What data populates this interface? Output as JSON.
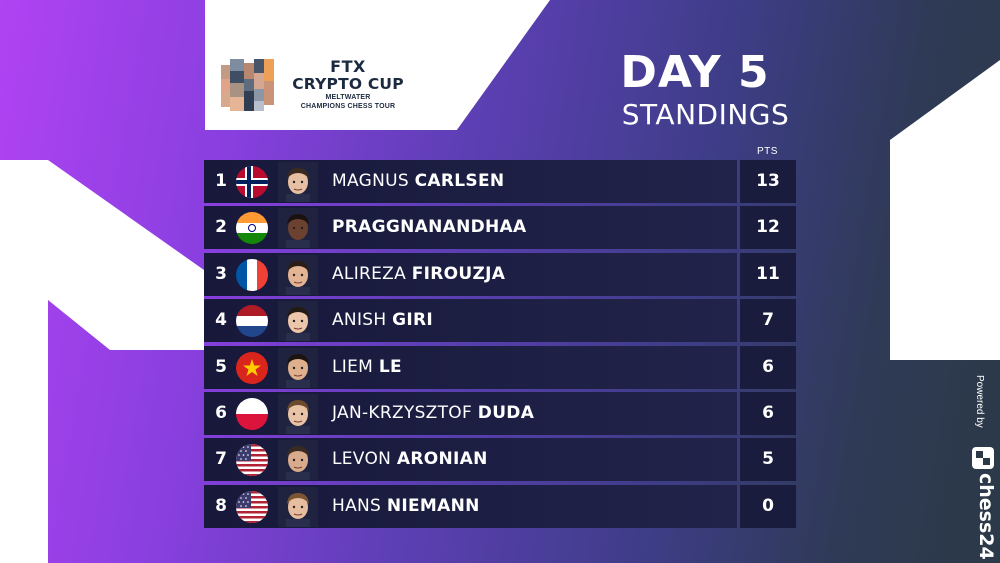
{
  "logo": {
    "ftx": "FTX",
    "cup": "CRYPTO CUP",
    "sub1": "MELTWATER",
    "sub2": "CHAMPIONS CHESS TOUR"
  },
  "title": {
    "day": "DAY 5",
    "sub": "STANDINGS"
  },
  "table": {
    "pts_header": "PTS",
    "rows": [
      {
        "rank": "1",
        "first": "MAGNUS ",
        "last": "CARLSEN",
        "pts": "13",
        "flag": "norway-flag"
      },
      {
        "rank": "2",
        "first": "",
        "last": "PRAGGNANANDHAA",
        "pts": "12",
        "flag": "india-flag"
      },
      {
        "rank": "3",
        "first": "ALIREZA ",
        "last": "FIROUZJA",
        "pts": "11",
        "flag": "france-flag"
      },
      {
        "rank": "4",
        "first": "ANISH ",
        "last": "GIRI",
        "pts": "7",
        "flag": "netherlands-flag"
      },
      {
        "rank": "5",
        "first": "LIEM ",
        "last": "LE",
        "pts": "6",
        "flag": "vietnam-flag"
      },
      {
        "rank": "6",
        "first": "JAN-KRZYSZTOF ",
        "last": "DUDA",
        "pts": "6",
        "flag": "poland-flag"
      },
      {
        "rank": "7",
        "first": "LEVON ",
        "last": "ARONIAN",
        "pts": "5",
        "flag": "usa-flag"
      },
      {
        "rank": "8",
        "first": "HANS ",
        "last": "NIEMANN",
        "pts": "0",
        "flag": "usa-flag"
      }
    ]
  },
  "footer": {
    "powered": "Powered by",
    "brand": "chess24"
  },
  "colors": {
    "row_bg": "#1d1f44",
    "gradient_left": "#b043f3",
    "gradient_right": "#2b3947"
  }
}
